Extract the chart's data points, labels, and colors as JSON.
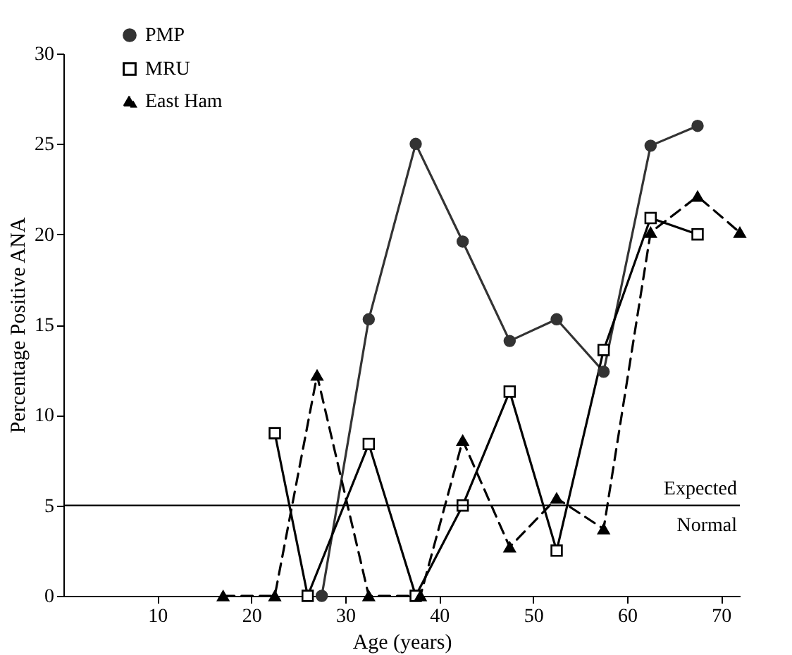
{
  "chart_data": {
    "type": "line",
    "xlabel": "Age (years)",
    "ylabel": "Percentage Positive ANA",
    "xlim": [
      0,
      72
    ],
    "xticks": [
      10,
      20,
      30,
      40,
      50,
      60,
      70
    ],
    "ylim": [
      0,
      30
    ],
    "yticks": [
      0,
      5,
      10,
      15,
      20,
      25,
      30
    ],
    "legend": "top left",
    "grid": false,
    "ref_lines": [
      {
        "axis": "y",
        "value": 5,
        "label": "Expected Normal",
        "color": "#000000"
      }
    ],
    "series": [
      {
        "name": "PMP",
        "color": "#333333",
        "marker": "circle",
        "line_style": "solid",
        "x": [
          27.5,
          32.5,
          37.5,
          42.5,
          47.5,
          52.5,
          57.5,
          62.5,
          67.5
        ],
        "values": [
          0,
          15.3,
          25,
          19.6,
          14.1,
          15.3,
          12.4,
          24.9,
          26
        ]
      },
      {
        "name": "MRU",
        "color": "#000000",
        "marker": "square",
        "line_style": "solid",
        "x": [
          22.5,
          26,
          32.5,
          37.5,
          42.5,
          47.5,
          52.5,
          57.5,
          62.5,
          67.5
        ],
        "values": [
          9,
          0,
          8.4,
          0,
          5,
          11.3,
          2.5,
          13.6,
          20.9,
          20
        ]
      },
      {
        "name": "East Ham",
        "color": "#000000",
        "marker": "triangle",
        "line_style": "dashed",
        "x": [
          17,
          22.5,
          27,
          32.5,
          38,
          42.5,
          47.5,
          52.5,
          57.5,
          62.5,
          67.5,
          72
        ],
        "values": [
          0,
          0,
          12.2,
          0,
          0,
          8.6,
          2.7,
          5.4,
          3.7,
          20.1,
          22.1,
          20.1
        ]
      }
    ]
  }
}
